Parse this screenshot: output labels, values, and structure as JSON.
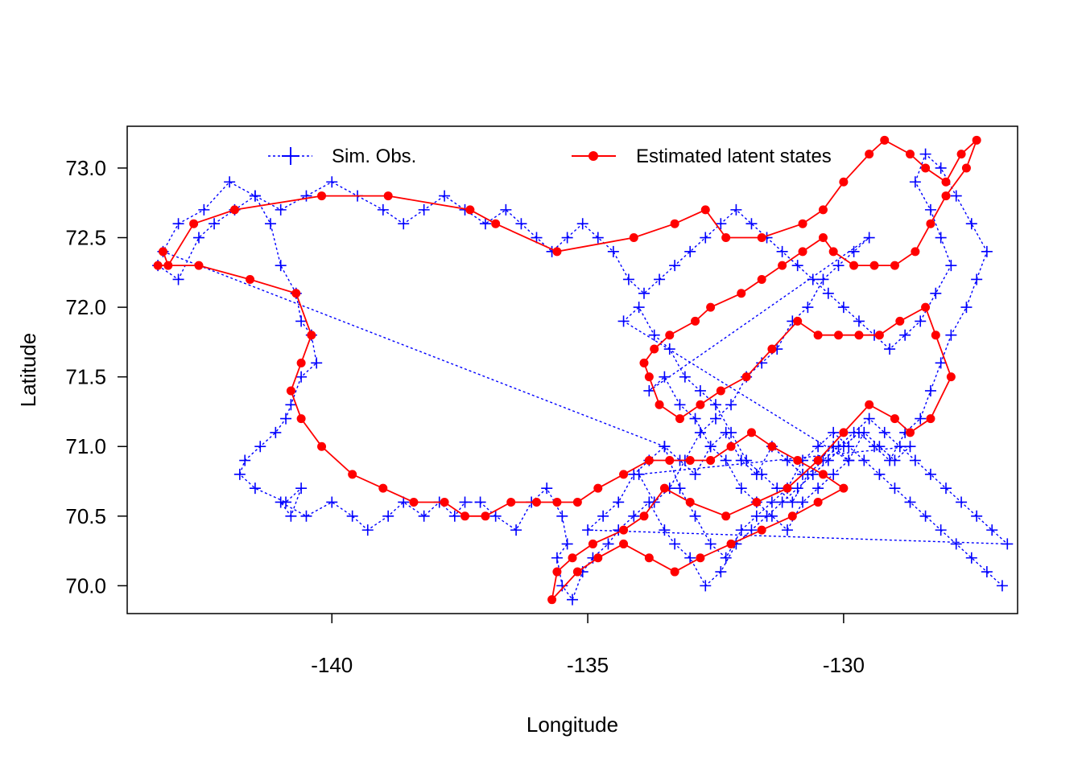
{
  "chart_data": {
    "type": "scatter",
    "title": "",
    "xlabel": "Longitude",
    "ylabel": "Latitude",
    "xlim": [
      -144.0,
      -126.6
    ],
    "ylim": [
      69.8,
      73.3
    ],
    "x_ticks": [
      -140,
      -135,
      -130
    ],
    "x_tick_labels": [
      "-140",
      "-135",
      "-130"
    ],
    "y_ticks": [
      70.0,
      70.5,
      71.0,
      71.5,
      72.0,
      72.5,
      73.0
    ],
    "y_tick_labels": [
      "70.0",
      "70.5",
      "71.0",
      "71.5",
      "72.0",
      "72.5",
      "73.0"
    ],
    "grid": false,
    "legend_position": "top",
    "colors": {
      "obs": "#0000ff",
      "states": "#ff0000"
    },
    "series": [
      {
        "name": "Sim. Obs.",
        "style": "dotted-line-plus-markers",
        "x": [
          -143.4,
          -143.0,
          -142.6,
          -142.3,
          -141.9,
          -141.5,
          -141.2,
          -141.0,
          -140.7,
          -140.6,
          -140.4,
          -140.3,
          -140.6,
          -140.8,
          -140.9,
          -141.1,
          -141.4,
          -141.7,
          -141.8,
          -141.5,
          -140.9,
          -140.6,
          -140.8,
          -141.0,
          -140.5,
          -140.0,
          -139.6,
          -139.3,
          -138.9,
          -138.6,
          -138.2,
          -137.9,
          -137.6,
          -137.4,
          -137.1,
          -136.8,
          -136.4,
          -136.1,
          -135.8,
          -135.5,
          -135.4,
          -135.6,
          -135.5,
          -135.3,
          -135.1,
          -134.9,
          -134.6,
          -134.4,
          -134.1,
          -133.8,
          -133.5,
          -133.3,
          -133.0,
          -132.7,
          -132.4,
          -132.1,
          -131.8,
          -131.5,
          -131.2,
          -130.9,
          -130.6,
          -130.3,
          -130.0,
          -129.7,
          -129.4,
          -129.1,
          -128.8,
          -128.5,
          -128.3,
          -128.1,
          -127.9,
          -127.6,
          -127.4,
          -127.2,
          -127.5,
          -127.8,
          -128.1,
          -128.4,
          -128.6,
          -128.3,
          -128.1,
          -127.9,
          -128.2,
          -128.5,
          -128.8,
          -129.1,
          -129.4,
          -129.7,
          -130.0,
          -130.3,
          -130.6,
          -130.9,
          -131.2,
          -131.5,
          -131.8,
          -132.1,
          -132.4,
          -132.7,
          -133.0,
          -133.3,
          -133.6,
          -133.9,
          -134.2,
          -134.5,
          -134.8,
          -135.1,
          -135.4,
          -135.7,
          -136.0,
          -136.3,
          -136.6,
          -137.0,
          -137.4,
          -137.8,
          -138.2,
          -138.6,
          -139.0,
          -139.5,
          -140.0,
          -140.5,
          -141.0,
          -141.5,
          -142.0,
          -142.5,
          -143.0,
          -143.3,
          -133.5,
          -133.2,
          -132.9,
          -132.6,
          -132.3,
          -132.0,
          -131.7,
          -131.4,
          -131.1,
          -130.8,
          -130.5,
          -130.2,
          -129.9,
          -129.6,
          -129.3,
          -129.0,
          -128.7,
          -134.0,
          -133.7,
          -133.4,
          -133.1,
          -132.8,
          -132.5,
          -132.2,
          -131.9,
          -131.6,
          -131.3,
          -131.0,
          -130.7,
          -130.4,
          -130.1,
          -129.8,
          -129.5,
          -133.8,
          -133.5,
          -133.2,
          -132.9,
          -132.6,
          -132.3,
          -132.0,
          -131.7,
          -131.4,
          -131.1,
          -130.8,
          -130.5,
          -130.2,
          -129.9,
          -134.3,
          -134.0,
          -133.7,
          -133.4,
          -133.1,
          -132.8,
          -132.5,
          -132.2,
          -131.9,
          -131.6,
          -131.3,
          -131.0,
          -130.7,
          -130.4,
          -130.1,
          -129.8,
          -129.5,
          -129.2,
          -128.9,
          -128.6,
          -128.3,
          -128.0,
          -127.7,
          -127.4,
          -127.1,
          -126.8,
          -135.0,
          -134.7,
          -134.4,
          -134.1,
          -133.8,
          -133.5,
          -133.2,
          -132.9,
          -132.6,
          -132.3,
          -132.0,
          -131.7,
          -131.4,
          -131.1,
          -130.8,
          -130.5,
          -130.2,
          -129.9,
          -129.6,
          -129.3,
          -129.0,
          -128.7,
          -128.4,
          -128.1,
          -127.8,
          -127.5,
          -127.2,
          -126.9
        ],
        "y": [
          72.3,
          72.2,
          72.5,
          72.6,
          72.7,
          72.8,
          72.6,
          72.3,
          72.1,
          71.9,
          71.8,
          71.6,
          71.5,
          71.3,
          71.2,
          71.1,
          71.0,
          70.9,
          70.8,
          70.7,
          70.6,
          70.7,
          70.5,
          70.6,
          70.5,
          70.6,
          70.5,
          70.4,
          70.5,
          70.6,
          70.5,
          70.6,
          70.5,
          70.6,
          70.6,
          70.5,
          70.4,
          70.6,
          70.7,
          70.5,
          70.3,
          70.2,
          70.0,
          69.9,
          70.1,
          70.2,
          70.3,
          70.4,
          70.5,
          70.6,
          70.4,
          70.3,
          70.2,
          70.0,
          70.1,
          70.3,
          70.4,
          70.5,
          70.6,
          70.7,
          70.8,
          70.9,
          71.0,
          71.1,
          71.0,
          70.9,
          71.1,
          71.2,
          71.4,
          71.6,
          71.8,
          72.0,
          72.2,
          72.4,
          72.6,
          72.8,
          73.0,
          73.1,
          72.9,
          72.7,
          72.5,
          72.3,
          72.1,
          71.9,
          71.8,
          71.7,
          71.8,
          71.9,
          72.0,
          72.1,
          72.2,
          72.3,
          72.4,
          72.5,
          72.6,
          72.7,
          72.6,
          72.5,
          72.4,
          72.3,
          72.2,
          72.1,
          72.2,
          72.4,
          72.5,
          72.6,
          72.5,
          72.4,
          72.5,
          72.6,
          72.7,
          72.6,
          72.7,
          72.8,
          72.7,
          72.6,
          72.7,
          72.8,
          72.9,
          72.8,
          72.7,
          72.8,
          72.9,
          72.7,
          72.6,
          72.4,
          71.0,
          70.9,
          70.8,
          71.0,
          71.1,
          70.9,
          70.8,
          71.0,
          70.9,
          70.8,
          70.9,
          71.0,
          70.9,
          71.1,
          71.0,
          70.9,
          71.0,
          70.8,
          70.6,
          70.7,
          70.9,
          71.1,
          71.2,
          71.3,
          71.5,
          71.6,
          71.7,
          71.9,
          72.0,
          72.2,
          72.3,
          72.4,
          72.5,
          71.4,
          71.5,
          71.3,
          71.2,
          71.0,
          70.9,
          70.7,
          70.6,
          70.5,
          70.4,
          70.6,
          70.7,
          70.8,
          70.9,
          71.9,
          72.0,
          71.8,
          71.7,
          71.5,
          71.4,
          71.3,
          71.1,
          70.9,
          70.8,
          70.7,
          70.6,
          70.8,
          70.9,
          71.0,
          71.1,
          71.2,
          71.1,
          71.0,
          70.9,
          70.8,
          70.7,
          70.6,
          70.5,
          70.4,
          70.3,
          70.4,
          70.5,
          70.6,
          70.8,
          70.9,
          71.0,
          70.7,
          70.5,
          70.3,
          70.2,
          70.4,
          70.5,
          70.6,
          70.7,
          70.9,
          71.0,
          71.1,
          71.0,
          70.9,
          70.8,
          70.7,
          70.6,
          70.5,
          70.4,
          70.3,
          70.2,
          70.1,
          70.0
        ]
      },
      {
        "name": "Estimated latent states",
        "style": "solid-line-filled-circles",
        "x": [
          -143.3,
          -143.2,
          -142.7,
          -141.9,
          -140.2,
          -138.9,
          -137.3,
          -136.8,
          -135.6,
          -134.1,
          -133.3,
          -132.7,
          -132.3,
          -131.6,
          -130.8,
          -130.4,
          -130.0,
          -129.5,
          -129.2,
          -128.7,
          -128.4,
          -128.0,
          -127.7,
          -127.4,
          -127.6,
          -128.0,
          -128.3,
          -128.6,
          -129.0,
          -129.4,
          -129.8,
          -130.2,
          -130.4,
          -130.8,
          -131.2,
          -131.6,
          -132.0,
          -132.6,
          -132.9,
          -133.4,
          -133.7,
          -133.9,
          -133.8,
          -133.6,
          -133.2,
          -132.8,
          -132.4,
          -131.9,
          -131.4,
          -130.9,
          -130.5,
          -130.1,
          -129.7,
          -129.3,
          -128.9,
          -128.4,
          -128.2,
          -127.9,
          -128.3,
          -128.7,
          -129.0,
          -129.5,
          -130.0,
          -130.5,
          -131.1,
          -131.7,
          -132.3,
          -133.0,
          -133.5,
          -133.9,
          -134.3,
          -134.9,
          -135.3,
          -135.6,
          -135.7,
          -135.2,
          -134.8,
          -134.3,
          -133.8,
          -133.3,
          -132.8,
          -132.2,
          -131.6,
          -131.0,
          -130.5,
          -130.0,
          -130.4,
          -130.9,
          -131.4,
          -131.8,
          -132.2,
          -132.6,
          -133.0,
          -133.4,
          -133.8,
          -134.3,
          -134.8,
          -135.2,
          -135.6,
          -136.0,
          -136.5,
          -137.0,
          -137.4,
          -137.8,
          -138.4,
          -139.0,
          -139.6,
          -140.2,
          -140.6,
          -140.8,
          -140.6,
          -140.4,
          -140.7,
          -141.6,
          -142.6,
          -143.4
        ],
        "y": [
          72.4,
          72.3,
          72.6,
          72.7,
          72.8,
          72.8,
          72.7,
          72.6,
          72.4,
          72.5,
          72.6,
          72.7,
          72.5,
          72.5,
          72.6,
          72.7,
          72.9,
          73.1,
          73.2,
          73.1,
          73.0,
          72.9,
          73.1,
          73.2,
          73.0,
          72.8,
          72.6,
          72.4,
          72.3,
          72.3,
          72.3,
          72.4,
          72.5,
          72.4,
          72.3,
          72.2,
          72.1,
          72.0,
          71.9,
          71.8,
          71.7,
          71.6,
          71.5,
          71.3,
          71.2,
          71.3,
          71.4,
          71.5,
          71.7,
          71.9,
          71.8,
          71.8,
          71.8,
          71.8,
          71.9,
          72.0,
          71.8,
          71.5,
          71.2,
          71.1,
          71.2,
          71.3,
          71.1,
          70.9,
          70.7,
          70.6,
          70.5,
          70.6,
          70.7,
          70.5,
          70.4,
          70.3,
          70.2,
          70.1,
          69.9,
          70.1,
          70.2,
          70.3,
          70.2,
          70.1,
          70.2,
          70.3,
          70.4,
          70.5,
          70.6,
          70.7,
          70.8,
          70.9,
          71.0,
          71.1,
          71.0,
          70.9,
          70.9,
          70.9,
          70.9,
          70.8,
          70.7,
          70.6,
          70.6,
          70.6,
          70.6,
          70.5,
          70.5,
          70.6,
          70.6,
          70.7,
          70.8,
          71.0,
          71.2,
          71.4,
          71.6,
          71.8,
          72.1,
          72.2,
          72.3,
          72.3
        ]
      }
    ]
  }
}
